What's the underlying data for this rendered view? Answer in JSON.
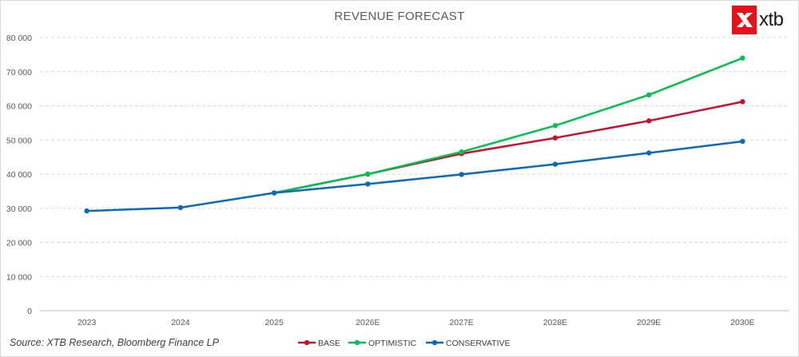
{
  "brand": {
    "name": "xtb",
    "accent": "#e4121a",
    "icon": "xtb-x-logo-icon"
  },
  "source_note": "Source: XTB Research, Bloomberg Finance LP",
  "chart_data": {
    "type": "line",
    "title": "REVENUE FORECAST",
    "xlabel": "",
    "ylabel": "",
    "categories": [
      "2023",
      "2024",
      "2025",
      "2026E",
      "2027E",
      "2028E",
      "2029E",
      "2030E"
    ],
    "ylim": [
      0,
      80000
    ],
    "yticks": [
      0,
      10000,
      20000,
      30000,
      40000,
      50000,
      60000,
      70000,
      80000
    ],
    "ytick_labels": [
      "0",
      "10 000",
      "20 000",
      "30 000",
      "40 000",
      "50 000",
      "60 000",
      "70 000",
      "80 000"
    ],
    "grid": true,
    "legend": "bottom-center",
    "series": [
      {
        "name": "BASE",
        "color": "#c8102e",
        "values": [
          null,
          null,
          34500,
          40000,
          46000,
          50600,
          55600,
          61200
        ]
      },
      {
        "name": "OPTIMISTIC",
        "color": "#00c050",
        "values": [
          null,
          null,
          34500,
          40000,
          46500,
          54200,
          63200,
          74000
        ]
      },
      {
        "name": "CONSERVATIVE",
        "color": "#0a6ab8",
        "values": [
          29200,
          30200,
          34500,
          37100,
          39900,
          42900,
          46200,
          49600
        ]
      }
    ]
  }
}
